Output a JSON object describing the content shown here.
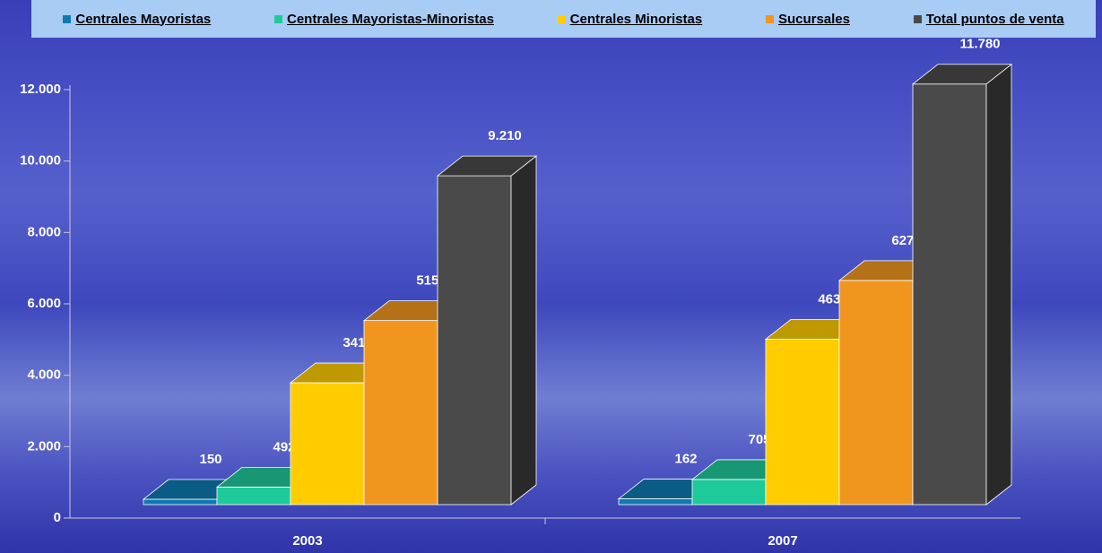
{
  "chart_data": {
    "type": "bar3d",
    "categories": [
      "2003",
      "2007"
    ],
    "series": [
      {
        "name": "Centrales Mayoristas",
        "color": "#0e7ab0",
        "values": [
          150,
          162
        ]
      },
      {
        "name": "Centrales Mayoristas-Minoristas",
        "color": "#1ec99a",
        "values": [
          492,
          705
        ]
      },
      {
        "name": "Centrales Minoristas",
        "color": "#ffcc00",
        "values": [
          3413,
          4634
        ]
      },
      {
        "name": "Sucursales",
        "color": "#f0961e",
        "values": [
          5155,
          6279
        ]
      },
      {
        "name": "Total puntos de venta",
        "color": "#4a4a4a",
        "values": [
          9210,
          11780
        ],
        "value_labels": [
          "9.210",
          "11.780"
        ]
      }
    ],
    "ylim": [
      0,
      12000
    ],
    "yticks": [
      0,
      {
        "value": 2000,
        "label": "2.000"
      },
      {
        "value": 4000,
        "label": "4.000"
      },
      {
        "value": 6000,
        "label": "6.000"
      },
      {
        "value": 8000,
        "label": "8.000"
      },
      {
        "value": 10000,
        "label": "10.000"
      },
      {
        "value": 12000,
        "label": "12.000"
      }
    ],
    "legend": "top"
  }
}
